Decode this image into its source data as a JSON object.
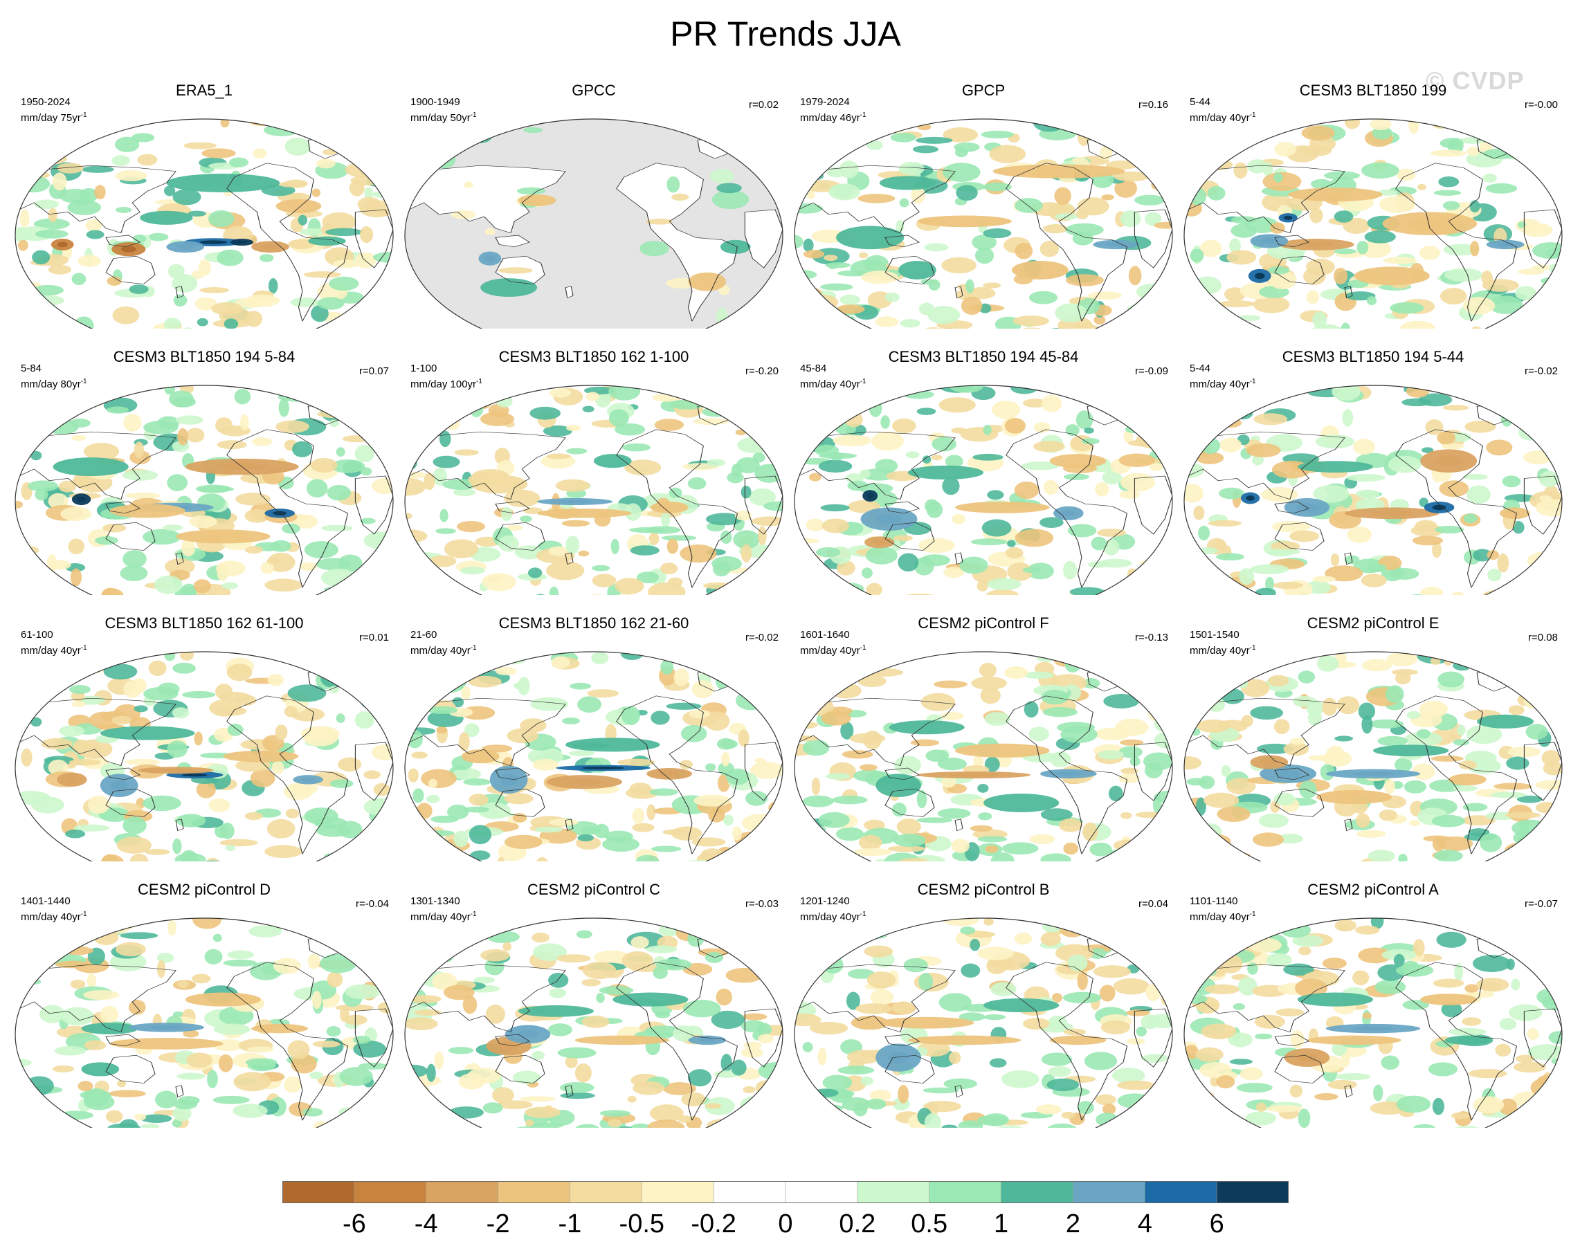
{
  "title": "PR Trends JJA",
  "watermark": "© CVDP",
  "panels": [
    {
      "title": "ERA5_1",
      "period": "1950-2024",
      "units": "mm/day 75yr",
      "corr": "",
      "landOnly": false,
      "seed": 11,
      "blobs": [
        [
          -0.4,
          0.12,
          0.09,
          0.06,
          -4
        ],
        [
          0.05,
          0.06,
          0.16,
          0.035,
          4
        ],
        [
          0.2,
          0.06,
          0.06,
          0.03,
          6
        ],
        [
          -0.1,
          0.1,
          0.1,
          0.05,
          2
        ],
        [
          0.35,
          0.1,
          0.1,
          0.05,
          -2
        ],
        [
          0.65,
          0.05,
          0.1,
          0.04,
          1
        ],
        [
          -0.75,
          0.08,
          0.06,
          0.05,
          -4
        ],
        [
          -0.2,
          -0.15,
          0.14,
          0.06,
          1
        ],
        [
          0.1,
          -0.45,
          0.3,
          0.08,
          1
        ],
        [
          0.5,
          -0.25,
          0.12,
          0.06,
          -1
        ]
      ]
    },
    {
      "title": "GPCC",
      "period": "1900-1949",
      "units": "mm/day 50yr",
      "corr": "r=0.02",
      "landOnly": true,
      "seed": 23,
      "blobs": [
        [
          -0.45,
          0.45,
          0.15,
          0.08,
          1
        ],
        [
          -0.55,
          0.2,
          0.06,
          0.06,
          2
        ],
        [
          0.6,
          0.4,
          0.1,
          0.08,
          -1
        ],
        [
          0.75,
          0.1,
          0.08,
          0.06,
          1
        ],
        [
          -0.3,
          -0.3,
          0.1,
          0.05,
          -1
        ]
      ]
    },
    {
      "title": "GPCP",
      "period": "1979-2024",
      "units": "mm/day 46yr",
      "corr": "r=0.16",
      "landOnly": false,
      "seed": 37,
      "blobs": [
        [
          -0.6,
          0.02,
          0.18,
          0.1,
          1
        ],
        [
          -0.35,
          0.3,
          0.1,
          0.08,
          1
        ],
        [
          -0.1,
          -0.12,
          0.25,
          0.05,
          -1
        ],
        [
          0.7,
          0.08,
          0.12,
          0.04,
          2
        ],
        [
          0.3,
          0.3,
          0.15,
          0.08,
          -1
        ],
        [
          0.4,
          -0.55,
          0.35,
          0.06,
          -1
        ],
        [
          -0.4,
          -0.45,
          0.15,
          0.06,
          1
        ]
      ]
    },
    {
      "title": "CESM3 BLT1850 199",
      "period": "5-44",
      "units": "mm/day 40yr",
      "corr": "r=-0.00",
      "landOnly": false,
      "seed": 41,
      "blobs": [
        [
          -0.3,
          0.08,
          0.2,
          0.05,
          -2
        ],
        [
          -0.6,
          0.35,
          0.06,
          0.06,
          4
        ],
        [
          -0.55,
          0.05,
          0.1,
          0.06,
          2
        ],
        [
          0.3,
          -0.1,
          0.25,
          0.1,
          -1
        ],
        [
          0.7,
          0.08,
          0.1,
          0.04,
          2
        ],
        [
          -0.2,
          -0.35,
          0.25,
          0.06,
          -1
        ],
        [
          0.1,
          0.35,
          0.2,
          0.08,
          -1
        ],
        [
          -0.45,
          -0.15,
          0.05,
          0.04,
          4
        ]
      ]
    },
    {
      "title": "CESM3 BLT1850 194 5-84",
      "period": "5-84",
      "units": "mm/day 80yr",
      "corr": "r=0.07",
      "landOnly": false,
      "seed": 53,
      "blobs": [
        [
          -0.65,
          -0.02,
          0.05,
          0.05,
          6
        ],
        [
          -0.15,
          0.05,
          0.2,
          0.04,
          2
        ],
        [
          0.4,
          0.1,
          0.08,
          0.04,
          4
        ],
        [
          -0.3,
          0.08,
          0.2,
          0.06,
          -1
        ],
        [
          0.2,
          -0.3,
          0.3,
          0.07,
          -2
        ],
        [
          0.1,
          0.3,
          0.25,
          0.06,
          -1
        ],
        [
          -0.6,
          -0.3,
          0.2,
          0.08,
          1
        ]
      ]
    },
    {
      "title": "CESM3 BLT1850 162 1-100",
      "period": "1-100",
      "units": "mm/day 100yr",
      "corr": "r=-0.20",
      "landOnly": false,
      "seed": 67,
      "blobs": [
        [
          -0.05,
          0.1,
          0.25,
          0.04,
          -1
        ],
        [
          -0.1,
          0.0,
          0.2,
          0.03,
          2
        ],
        [
          0.1,
          -0.35,
          0.1,
          0.06,
          1
        ],
        [
          -0.5,
          -0.15,
          0.15,
          0.08,
          -0.5
        ],
        [
          0.4,
          0.05,
          0.1,
          0.05,
          -1
        ]
      ]
    },
    {
      "title": "CESM3 BLT1850 194 45-84",
      "period": "45-84",
      "units": "mm/day 40yr",
      "corr": "r=-0.09",
      "landOnly": false,
      "seed": 79,
      "blobs": [
        [
          -0.6,
          -0.05,
          0.04,
          0.05,
          6
        ],
        [
          -0.5,
          0.15,
          0.15,
          0.1,
          2
        ],
        [
          0.1,
          0.05,
          0.25,
          0.05,
          -1
        ],
        [
          0.45,
          0.1,
          0.08,
          0.06,
          2
        ],
        [
          -0.2,
          -0.25,
          0.2,
          0.06,
          1
        ],
        [
          0.5,
          -0.35,
          0.15,
          0.06,
          -1
        ],
        [
          -0.55,
          0.35,
          0.08,
          0.05,
          -2
        ]
      ]
    },
    {
      "title": "CESM3 BLT1850 194 5-44",
      "period": "5-44",
      "units": "mm/day 40yr",
      "corr": "r=-0.02",
      "landOnly": false,
      "seed": 83,
      "blobs": [
        [
          -0.65,
          -0.03,
          0.05,
          0.05,
          4
        ],
        [
          0.1,
          0.1,
          0.25,
          0.05,
          -2
        ],
        [
          0.35,
          0.05,
          0.08,
          0.05,
          4
        ],
        [
          -0.35,
          0.05,
          0.12,
          0.08,
          2
        ],
        [
          0.4,
          -0.35,
          0.15,
          0.1,
          -2
        ],
        [
          -0.2,
          -0.3,
          0.2,
          0.05,
          1
        ],
        [
          0.75,
          0.1,
          0.08,
          0.05,
          -1
        ]
      ]
    },
    {
      "title": "CESM3 BLT1850 162 61-100",
      "period": "61-100",
      "units": "mm/day 40yr",
      "corr": "r=0.01",
      "landOnly": false,
      "seed": 97,
      "blobs": [
        [
          -0.05,
          0.06,
          0.15,
          0.03,
          4
        ],
        [
          -0.15,
          0.02,
          0.2,
          0.03,
          -2
        ],
        [
          -0.45,
          0.15,
          0.1,
          0.1,
          2
        ],
        [
          -0.7,
          0.1,
          0.08,
          0.06,
          -2
        ],
        [
          0.3,
          -0.1,
          0.2,
          0.05,
          -1
        ],
        [
          0.55,
          0.1,
          0.08,
          0.04,
          2
        ],
        [
          -0.3,
          -0.3,
          0.25,
          0.06,
          1
        ]
      ]
    },
    {
      "title": "CESM3 BLT1850 162 21-60",
      "period": "21-60",
      "units": "mm/day 40yr",
      "corr": "r=-0.02",
      "landOnly": false,
      "seed": 101,
      "blobs": [
        [
          0.05,
          0.0,
          0.25,
          0.025,
          4
        ],
        [
          -0.05,
          0.12,
          0.2,
          0.06,
          -2
        ],
        [
          -0.45,
          0.1,
          0.1,
          0.12,
          2
        ],
        [
          0.4,
          0.05,
          0.12,
          0.05,
          -2
        ],
        [
          0.1,
          -0.2,
          0.25,
          0.06,
          1
        ],
        [
          -0.6,
          -0.1,
          0.1,
          0.06,
          -1
        ]
      ]
    },
    {
      "title": "CESM2 piControl F",
      "period": "1601-1640",
      "units": "mm/day 40yr",
      "corr": "r=-0.13",
      "landOnly": false,
      "seed": 113,
      "blobs": [
        [
          -0.05,
          0.06,
          0.3,
          0.03,
          -2
        ],
        [
          0.45,
          0.05,
          0.15,
          0.04,
          2
        ],
        [
          -0.45,
          0.15,
          0.12,
          0.1,
          1
        ],
        [
          0.1,
          -0.15,
          0.25,
          0.06,
          -1
        ],
        [
          0.2,
          0.3,
          0.2,
          0.08,
          1
        ],
        [
          -0.3,
          -0.35,
          0.2,
          0.06,
          1
        ]
      ]
    },
    {
      "title": "CESM2 piControl E",
      "period": "1501-1540",
      "units": "mm/day 40yr",
      "corr": "r=0.08",
      "landOnly": false,
      "seed": 127,
      "blobs": [
        [
          0.0,
          0.05,
          0.25,
          0.04,
          2
        ],
        [
          -0.45,
          0.05,
          0.15,
          0.08,
          2
        ],
        [
          -0.1,
          0.25,
          0.2,
          0.06,
          -1
        ],
        [
          -0.55,
          -0.05,
          0.1,
          0.06,
          -2
        ],
        [
          0.2,
          -0.15,
          0.2,
          0.05,
          1
        ],
        [
          0.5,
          0.1,
          0.1,
          0.05,
          -1
        ],
        [
          0.7,
          -0.4,
          0.15,
          0.06,
          1
        ]
      ]
    },
    {
      "title": "CESM2 piControl D",
      "period": "1401-1440",
      "units": "mm/day 40yr",
      "corr": "r=-0.04",
      "landOnly": false,
      "seed": 131,
      "blobs": [
        [
          -0.2,
          0.08,
          0.3,
          0.05,
          -1
        ],
        [
          -0.5,
          -0.05,
          0.15,
          0.05,
          1
        ],
        [
          -0.2,
          -0.06,
          0.2,
          0.04,
          2
        ],
        [
          0.4,
          -0.05,
          0.15,
          0.04,
          -1
        ],
        [
          0.1,
          -0.3,
          0.2,
          0.06,
          -1
        ],
        [
          -0.55,
          0.3,
          0.1,
          0.06,
          1
        ]
      ]
    },
    {
      "title": "CESM2 piControl C",
      "period": "1301-1340",
      "units": "mm/day 40yr",
      "corr": "r=-0.03",
      "landOnly": false,
      "seed": 149,
      "blobs": [
        [
          -0.45,
          0.1,
          0.12,
          0.08,
          -2
        ],
        [
          -0.35,
          0.0,
          0.12,
          0.08,
          2
        ],
        [
          0.15,
          0.05,
          0.25,
          0.04,
          -1
        ],
        [
          -0.2,
          -0.2,
          0.2,
          0.05,
          1
        ],
        [
          0.3,
          -0.3,
          0.2,
          0.06,
          1
        ],
        [
          0.6,
          0.05,
          0.1,
          0.04,
          2
        ]
      ]
    },
    {
      "title": "CESM2 piControl B",
      "period": "1201-1240",
      "units": "mm/day 40yr",
      "corr": "r=0.04",
      "landOnly": false,
      "seed": 157,
      "blobs": [
        [
          -0.45,
          0.2,
          0.12,
          0.12,
          2
        ],
        [
          -0.1,
          0.05,
          0.3,
          0.04,
          -1
        ],
        [
          0.5,
          0.05,
          0.15,
          0.04,
          -1
        ],
        [
          -0.3,
          -0.1,
          0.25,
          0.05,
          -1
        ],
        [
          0.2,
          -0.25,
          0.2,
          0.06,
          1
        ],
        [
          -0.6,
          -0.1,
          0.1,
          0.06,
          -1
        ]
      ]
    },
    {
      "title": "CESM2 piControl A",
      "period": "1101-1140",
      "units": "mm/day 40yr",
      "corr": "r=-0.07",
      "landOnly": false,
      "seed": 163,
      "blobs": [
        [
          -0.35,
          0.2,
          0.12,
          0.08,
          -2
        ],
        [
          -0.1,
          0.05,
          0.25,
          0.04,
          -1
        ],
        [
          0.0,
          -0.05,
          0.25,
          0.04,
          2
        ],
        [
          0.5,
          0.05,
          0.12,
          0.04,
          1
        ],
        [
          -0.2,
          -0.3,
          0.2,
          0.06,
          1
        ],
        [
          0.4,
          -0.3,
          0.15,
          0.05,
          -1
        ]
      ]
    }
  ],
  "colorbar": {
    "levels": [
      "-6",
      "-4",
      "-2",
      "-1",
      "-0.5",
      "-0.2",
      "0",
      "0.2",
      "0.5",
      "1",
      "2",
      "4",
      "6"
    ],
    "colors": [
      "#b06a2d",
      "#c8843e",
      "#d9a362",
      "#edc47d",
      "#f3dca0",
      "#fdf3c4",
      "#ffffff",
      "#ffffff",
      "#cdf7cd",
      "#9ae8b4",
      "#4fb89a",
      "#6aa6c4",
      "#1c6aa6",
      "#0b3a5a"
    ]
  }
}
